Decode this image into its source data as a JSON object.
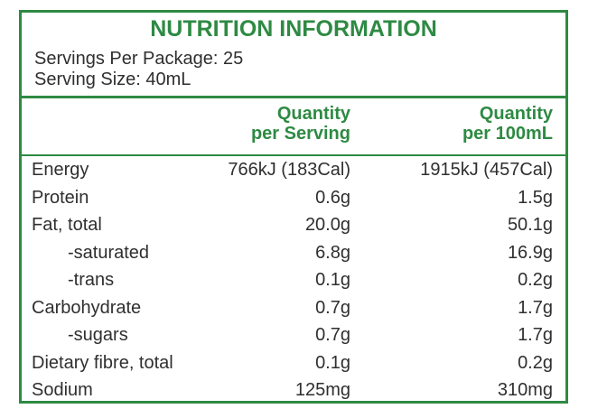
{
  "title": "NUTRITION INFORMATION",
  "servings_per_package": "Servings Per Package: 25",
  "serving_size": "Serving Size: 40mL",
  "headers": {
    "per_serving_line1": "Quantity",
    "per_serving_line2": "per Serving",
    "per_100_line1": "Quantity",
    "per_100_line2": "per 100mL"
  },
  "rows": [
    {
      "label": "Energy",
      "per_serving": "766kJ (183Cal)",
      "per_100": "1915kJ (457Cal)",
      "indent": false
    },
    {
      "label": "Protein",
      "per_serving": "0.6g",
      "per_100": "1.5g",
      "indent": false
    },
    {
      "label": "Fat, total",
      "per_serving": "20.0g",
      "per_100": "50.1g",
      "indent": false
    },
    {
      "label": "-saturated",
      "per_serving": "6.8g",
      "per_100": "16.9g",
      "indent": true
    },
    {
      "label": "-trans",
      "per_serving": "0.1g",
      "per_100": "0.2g",
      "indent": true
    },
    {
      "label": "Carbohydrate",
      "per_serving": "0.7g",
      "per_100": "1.7g",
      "indent": false
    },
    {
      "label": "-sugars",
      "per_serving": "0.7g",
      "per_100": "1.7g",
      "indent": true
    },
    {
      "label": "Dietary fibre, total",
      "per_serving": "0.1g",
      "per_100": "0.2g",
      "indent": false
    },
    {
      "label": "Sodium",
      "per_serving": "125mg",
      "per_100": "310mg",
      "indent": false
    }
  ],
  "colors": {
    "accent": "#2e8a43",
    "text": "#2f2f2f"
  }
}
